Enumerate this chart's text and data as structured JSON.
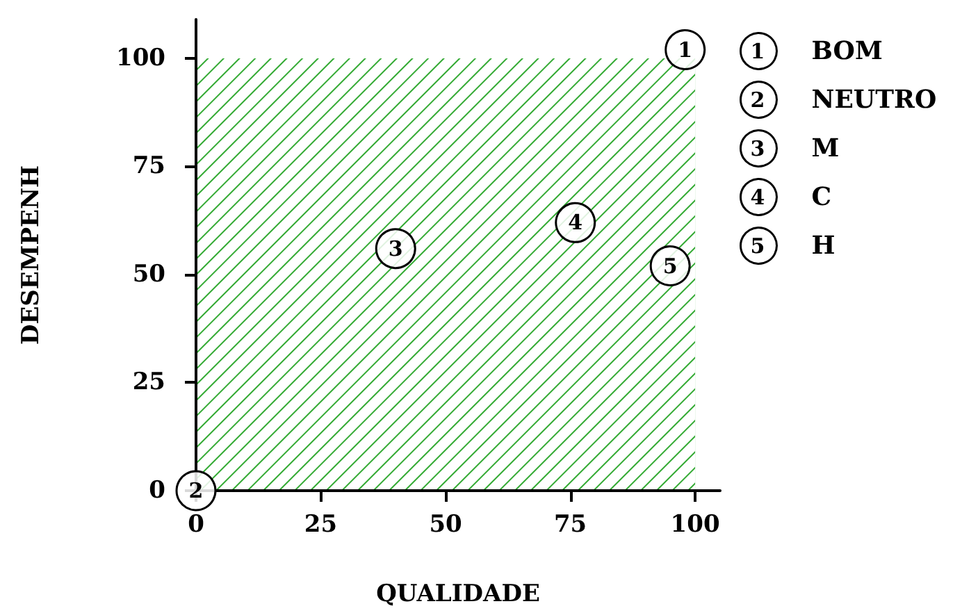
{
  "chart_data": {
    "type": "scatter",
    "xlabel": "QUALIDADE",
    "ylabel": "DESEMPENH",
    "xlim": [
      0,
      105
    ],
    "ylim": [
      0,
      109
    ],
    "xticks": [
      0,
      25,
      50,
      75,
      100
    ],
    "yticks": [
      0,
      25,
      50,
      75,
      100
    ],
    "legend": "top right",
    "marker": "circle",
    "series": [
      {
        "type": "area",
        "marker": "none",
        "color": "#33aa33",
        "x": [
          0,
          100
        ],
        "values": [
          100,
          100
        ]
      },
      {
        "name": "BOM",
        "color": "#000000",
        "x": [
          98
        ],
        "values": [
          102
        ]
      },
      {
        "name": "NEUTRO",
        "color": "#000000",
        "x": [
          0
        ],
        "values": [
          0
        ]
      },
      {
        "name": "M",
        "color": "#000000",
        "x": [
          40
        ],
        "values": [
          56
        ]
      },
      {
        "name": "C",
        "color": "#000000",
        "x": [
          76
        ],
        "values": [
          62
        ]
      },
      {
        "name": "H",
        "color": "#000000",
        "x": [
          95
        ],
        "values": [
          52
        ]
      }
    ],
    "annotations": [
      {
        "text": "1",
        "x": 98,
        "y": 102
      },
      {
        "text": "2",
        "x": 0,
        "y": 0
      },
      {
        "text": "3",
        "x": 40,
        "y": 56
      },
      {
        "text": "4",
        "x": 76,
        "y": 62
      },
      {
        "text": "5",
        "x": 95,
        "y": 52
      }
    ]
  }
}
